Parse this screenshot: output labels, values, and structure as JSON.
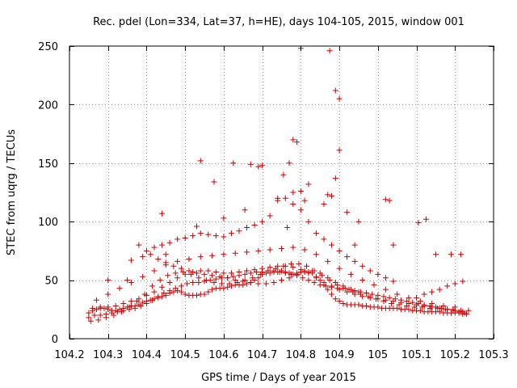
{
  "chart_data": {
    "type": "scatter",
    "title": "Rec. pdel (Lon=334, Lat=37, h=HE), days 104-105, 2015, window 001",
    "xlabel": "GPS time / Days of year 2015",
    "ylabel": "STEC from uqrg / TECUs",
    "xlim": [
      104.2,
      105.3
    ],
    "ylim": [
      0,
      250
    ],
    "xticks": [
      104.2,
      104.3,
      104.4,
      104.5,
      104.6,
      104.7,
      104.8,
      104.9,
      105,
      105.1,
      105.2,
      105.3
    ],
    "xtick_labels": [
      "104.2",
      "104.3",
      "104.4",
      "104.5",
      "104.6",
      "104.7",
      "104.8",
      "104.9",
      "105",
      "105.1",
      "105.2",
      "105.3"
    ],
    "yticks": [
      0,
      50,
      100,
      150,
      200,
      250
    ],
    "ytick_labels": [
      "0",
      "50",
      "100",
      "150",
      "200",
      "250"
    ],
    "grid": true,
    "marker": "+",
    "color": "#cc0000",
    "series": [
      {
        "name": "STEC",
        "x": [
          104.25,
          104.26,
          104.27,
          104.28,
          104.29,
          104.3,
          104.31,
          104.32,
          104.33,
          104.34,
          104.35,
          104.36,
          104.37,
          104.38,
          104.39,
          104.4,
          104.41,
          104.42,
          104.43,
          104.44,
          104.45,
          104.46,
          104.47,
          104.48,
          104.49,
          104.5,
          104.51,
          104.52,
          104.53,
          104.54,
          104.55,
          104.56,
          104.57,
          104.58,
          104.59,
          104.6,
          104.61,
          104.62,
          104.63,
          104.64,
          104.65,
          104.66,
          104.67,
          104.68,
          104.69,
          104.7,
          104.71,
          104.72,
          104.73,
          104.74,
          104.75,
          104.76,
          104.77,
          104.78,
          104.79,
          104.8,
          104.81,
          104.82,
          104.83,
          104.84,
          104.85,
          104.86,
          104.87,
          104.88,
          104.89,
          104.9,
          104.91,
          104.92,
          104.93,
          104.94,
          104.95,
          104.96,
          104.97,
          104.98,
          104.99,
          105.0,
          105.01,
          105.02,
          105.03,
          105.04,
          105.05,
          105.06,
          105.07,
          105.08,
          105.09,
          105.1,
          105.11,
          105.12,
          105.13,
          105.14,
          105.15,
          105.16,
          105.17,
          105.18,
          105.19,
          105.2,
          105.21,
          105.22,
          105.23,
          104.25,
          104.265,
          104.28,
          104.295,
          104.31,
          104.325,
          104.34,
          104.355,
          104.37,
          104.385,
          104.4,
          104.415,
          104.43,
          104.445,
          104.46,
          104.475,
          104.49,
          104.505,
          104.52,
          104.535,
          104.55,
          104.565,
          104.58,
          104.595,
          104.61,
          104.625,
          104.64,
          104.655,
          104.67,
          104.685,
          104.7,
          104.715,
          104.73,
          104.745,
          104.76,
          104.775,
          104.79,
          104.805,
          104.82,
          104.835,
          104.85,
          104.865,
          104.88,
          104.895,
          104.91,
          104.925,
          104.94,
          104.955,
          104.97,
          104.985,
          105.0,
          105.015,
          105.03,
          105.045,
          105.06,
          105.075,
          105.09,
          105.105,
          105.12,
          105.135,
          105.15,
          105.165,
          105.18,
          105.195,
          105.21,
          105.225,
          104.26,
          104.28,
          104.3,
          104.32,
          104.34,
          104.36,
          104.38,
          104.4,
          104.42,
          104.44,
          104.46,
          104.48,
          104.5,
          104.52,
          104.54,
          104.56,
          104.58,
          104.6,
          104.62,
          104.64,
          104.66,
          104.68,
          104.7,
          104.72,
          104.74,
          104.76,
          104.78,
          104.8,
          104.82,
          104.84,
          104.86,
          104.88,
          104.9,
          104.92,
          104.94,
          104.96,
          104.98,
          105.0,
          105.02,
          105.04,
          105.06,
          105.08,
          105.1,
          105.12,
          105.14,
          105.16,
          105.18,
          105.2,
          105.22,
          104.255,
          104.275,
          104.295,
          104.315,
          104.335,
          104.355,
          104.375,
          104.395,
          104.415,
          104.435,
          104.455,
          104.475,
          104.495,
          104.515,
          104.535,
          104.555,
          104.575,
          104.595,
          104.615,
          104.635,
          104.655,
          104.675,
          104.695,
          104.715,
          104.735,
          104.755,
          104.775,
          104.795,
          104.815,
          104.835,
          104.855,
          104.875,
          104.895,
          104.915,
          104.935,
          104.955,
          104.975,
          104.995,
          105.015,
          105.035,
          105.055,
          105.075,
          105.095,
          105.115,
          105.135,
          105.155,
          105.175,
          105.195,
          105.215,
          105.235,
          104.27,
          104.3,
          104.33,
          104.36,
          104.39,
          104.42,
          104.45,
          104.48,
          104.51,
          104.54,
          104.57,
          104.6,
          104.63,
          104.66,
          104.69,
          104.72,
          104.75,
          104.78,
          104.81,
          104.84,
          104.87,
          104.9,
          104.93,
          104.96,
          104.99,
          105.02,
          105.05,
          105.08,
          105.11,
          105.14,
          105.17,
          105.2,
          104.38,
          104.4,
          104.42,
          104.44,
          104.46,
          104.48,
          104.5,
          104.52,
          104.54,
          104.56,
          104.58,
          104.6,
          104.62,
          104.64,
          104.66,
          104.68,
          104.7,
          104.72,
          104.74,
          104.76,
          104.78,
          104.8,
          104.82,
          104.84,
          104.86,
          104.88,
          104.9,
          104.92,
          104.94,
          104.96,
          104.98,
          105.0,
          105.02,
          105.04,
          104.39,
          104.41,
          104.43,
          104.45,
          104.47,
          104.49,
          104.51,
          104.53,
          104.55,
          104.57,
          104.59,
          104.61,
          104.63,
          104.65,
          104.67,
          104.69,
          104.71,
          104.73,
          104.75,
          104.77,
          104.79,
          104.81,
          104.83,
          104.85,
          104.87,
          104.89,
          104.91,
          104.93,
          104.95,
          105.1,
          105.12,
          105.14,
          105.16,
          105.18,
          105.2,
          105.22,
          104.8,
          104.875,
          104.89,
          104.9,
          104.9,
          104.78,
          104.79,
          104.77,
          104.755,
          104.7,
          104.69,
          104.67,
          104.625,
          104.54,
          104.82,
          104.78,
          104.8,
          104.74,
          104.575,
          104.655,
          104.44,
          104.36,
          104.53,
          104.6,
          104.88,
          104.92,
          104.95,
          104.94,
          105.02,
          105.03,
          105.125,
          105.105,
          105.04,
          104.765,
          104.81,
          104.86,
          104.3,
          104.35,
          104.45,
          105.15,
          105.19,
          105.215,
          104.89,
          104.87
        ],
        "y": [
          22,
          24,
          25,
          26,
          26,
          25,
          24,
          24,
          25,
          26,
          27,
          28,
          28,
          29,
          31,
          32,
          33,
          34,
          35,
          36,
          37,
          39,
          40,
          41,
          40,
          38,
          37,
          37,
          37,
          38,
          38,
          40,
          42,
          43,
          43,
          43,
          44,
          45,
          46,
          46,
          46,
          47,
          48,
          50,
          52,
          55,
          56,
          56,
          57,
          57,
          58,
          57,
          56,
          55,
          56,
          57,
          58,
          57,
          56,
          53,
          50,
          46,
          42,
          38,
          34,
          32,
          30,
          29,
          29,
          29,
          29,
          28,
          28,
          27,
          27,
          27,
          26,
          26,
          26,
          26,
          26,
          25,
          25,
          25,
          24,
          24,
          24,
          23,
          23,
          23,
          23,
          23,
          22,
          22,
          22,
          22,
          22,
          21,
          21,
          18,
          20,
          20,
          21,
          22,
          23,
          24,
          25,
          26,
          28,
          30,
          33,
          36,
          39,
          41,
          43,
          45,
          47,
          48,
          48,
          49,
          50,
          51,
          52,
          52,
          53,
          54,
          55,
          56,
          57,
          57,
          58,
          58,
          57,
          56,
          55,
          54,
          52,
          50,
          48,
          46,
          45,
          44,
          43,
          43,
          42,
          41,
          40,
          39,
          38,
          37,
          36,
          35,
          34,
          33,
          32,
          31,
          30,
          29,
          28,
          27,
          26,
          25,
          24,
          23,
          22,
          26,
          27,
          27,
          28,
          30,
          32,
          34,
          37,
          40,
          44,
          48,
          52,
          55,
          57,
          58,
          58,
          57,
          56,
          56,
          57,
          58,
          59,
          60,
          61,
          62,
          62,
          61,
          59,
          56,
          52,
          48,
          45,
          42,
          40,
          38,
          36,
          35,
          34,
          33,
          32,
          31,
          30,
          29,
          28,
          27,
          26,
          25,
          24,
          23,
          15,
          16,
          18,
          20,
          23,
          27,
          32,
          38,
          45,
          50,
          54,
          56,
          57,
          55,
          52,
          50,
          48,
          47,
          47,
          48,
          50,
          52,
          55,
          58,
          60,
          62,
          64,
          64,
          62,
          58,
          54,
          50,
          46,
          43,
          40,
          38,
          36,
          34,
          32,
          30,
          29,
          28,
          27,
          27,
          26,
          26,
          25,
          25,
          24,
          24,
          33,
          38,
          43,
          48,
          53,
          58,
          63,
          66,
          68,
          70,
          71,
          72,
          73,
          74,
          75,
          76,
          77,
          78,
          76,
          72,
          66,
          60,
          55,
          50,
          46,
          42,
          38,
          35,
          32,
          30,
          28,
          27,
          80,
          75,
          78,
          80,
          82,
          85,
          86,
          88,
          90,
          89,
          88,
          87,
          90,
          92,
          95,
          97,
          100,
          105,
          118,
          120,
          115,
          110,
          100,
          90,
          85,
          80,
          75,
          70,
          66,
          62,
          58,
          55,
          52,
          49,
          70,
          72,
          68,
          65,
          62,
          60,
          58,
          56,
          55,
          54,
          53,
          52,
          50,
          49,
          48,
          47,
          47,
          48,
          50,
          52,
          55,
          57,
          58,
          56,
          52,
          48,
          45,
          42,
          40,
          35,
          38,
          40,
          42,
          45,
          47,
          49,
          248,
          246,
          212,
          205,
          161,
          170,
          168,
          150,
          140,
          148,
          147,
          149,
          150,
          152,
          132,
          125,
          126,
          120,
          134,
          110,
          107,
          67,
          96,
          103,
          122,
          108,
          100,
          80,
          119,
          118,
          102,
          99,
          80,
          95,
          118,
          115,
          50,
          50,
          72,
          72,
          72,
          72,
          137,
          123
        ]
      }
    ]
  }
}
